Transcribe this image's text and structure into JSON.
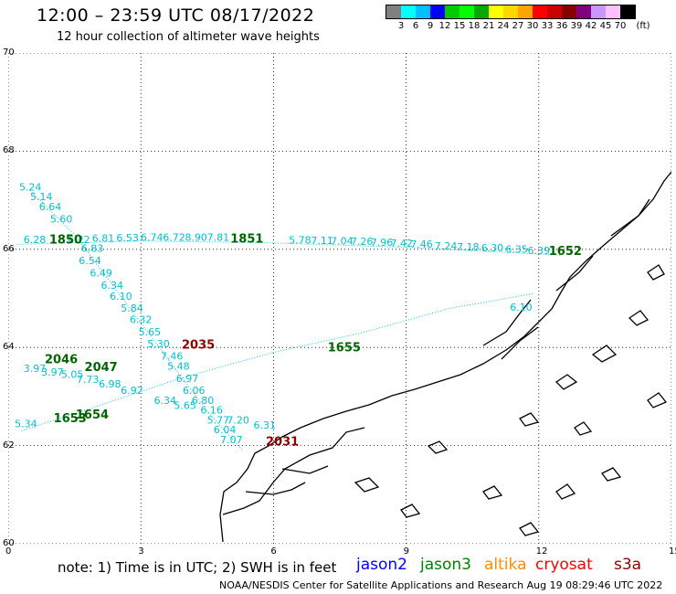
{
  "header": {
    "title": "12:00 – 23:59 UTC 08/17/2022",
    "subtitle": "12 hour collection of altimeter wave heights"
  },
  "color_scale": {
    "unit": "(ft)",
    "labels": [
      "3",
      "6",
      "9",
      "12",
      "15",
      "18",
      "21",
      "24",
      "27",
      "30",
      "33",
      "36",
      "39",
      "42",
      "45",
      "70"
    ],
    "colors": [
      "#808080",
      "#00ffff",
      "#00bfff",
      "#0000ff",
      "#00cc00",
      "#00ff00",
      "#00aa00",
      "#ffff00",
      "#ffd700",
      "#ffa500",
      "#ff0000",
      "#cc0000",
      "#880000",
      "#800080",
      "#c896ff",
      "#ffc0ff",
      "#000000"
    ]
  },
  "map": {
    "lat_ticks": [
      "70",
      "68",
      "66",
      "64",
      "62",
      "60"
    ],
    "lon_ticks": [
      "0",
      "3",
      "6",
      "9",
      "12",
      "15"
    ],
    "xlim": [
      0,
      15
    ],
    "ylim": [
      60,
      70
    ],
    "grid": true
  },
  "chart_data": {
    "type": "scatter",
    "xlim": [
      0,
      15
    ],
    "ylim": [
      60,
      70
    ],
    "grid": true,
    "series": [
      {
        "name": "jason2",
        "color": "#0000ff",
        "points": []
      },
      {
        "name": "jason3",
        "color": "#006400",
        "points": [
          {
            "x": 1.3,
            "y": 66.12,
            "label": "1850"
          },
          {
            "x": 5.4,
            "y": 66.14,
            "label": "1851"
          },
          {
            "x": 1.2,
            "y": 63.68,
            "label": "2046"
          },
          {
            "x": 2.1,
            "y": 63.52,
            "label": "2047"
          },
          {
            "x": 1.4,
            "y": 62.48,
            "label": "1653"
          },
          {
            "x": 1.9,
            "y": 62.55,
            "label": "1654"
          },
          {
            "x": 7.6,
            "y": 63.92,
            "label": "1655"
          },
          {
            "x": 12.6,
            "y": 65.88,
            "label": "1652"
          }
        ]
      },
      {
        "name": "altika",
        "color": "#ff8c00",
        "points": []
      },
      {
        "name": "cryosat",
        "color": "#ff0000",
        "points": []
      },
      {
        "name": "s3a",
        "color": "#8b0000",
        "points": [
          {
            "x": 4.3,
            "y": 63.98,
            "label": "2035"
          },
          {
            "x": 6.2,
            "y": 62.0,
            "label": "2031"
          }
        ]
      }
    ],
    "wave_heights": [
      {
        "x": 0.5,
        "y": 67.2,
        "label": "5.24"
      },
      {
        "x": 0.75,
        "y": 67.0,
        "label": "5.14"
      },
      {
        "x": 0.95,
        "y": 66.8,
        "label": "6.64"
      },
      {
        "x": 1.2,
        "y": 66.55,
        "label": "5.60"
      },
      {
        "x": 0.6,
        "y": 66.13,
        "label": "6.28"
      },
      {
        "x": 1.6,
        "y": 66.13,
        "label": "6.22"
      },
      {
        "x": 2.15,
        "y": 66.15,
        "label": "6.81"
      },
      {
        "x": 2.7,
        "y": 66.16,
        "label": "6.53"
      },
      {
        "x": 3.25,
        "y": 66.17,
        "label": "6.74"
      },
      {
        "x": 3.75,
        "y": 66.17,
        "label": "6.72"
      },
      {
        "x": 4.25,
        "y": 66.17,
        "label": "8.90"
      },
      {
        "x": 4.75,
        "y": 66.17,
        "label": "7.81"
      },
      {
        "x": 6.6,
        "y": 66.12,
        "label": "5.78"
      },
      {
        "x": 7.1,
        "y": 66.11,
        "label": "7.11"
      },
      {
        "x": 7.55,
        "y": 66.1,
        "label": "7.04"
      },
      {
        "x": 8.0,
        "y": 66.09,
        "label": "7.26"
      },
      {
        "x": 8.45,
        "y": 66.07,
        "label": "7.96"
      },
      {
        "x": 8.9,
        "y": 66.05,
        "label": "7.42"
      },
      {
        "x": 9.35,
        "y": 66.03,
        "label": "7.46"
      },
      {
        "x": 9.9,
        "y": 66.0,
        "label": "7.24"
      },
      {
        "x": 10.4,
        "y": 65.98,
        "label": "7.18"
      },
      {
        "x": 10.95,
        "y": 65.96,
        "label": "6.30"
      },
      {
        "x": 11.5,
        "y": 65.93,
        "label": "6.35"
      },
      {
        "x": 12.0,
        "y": 65.9,
        "label": "6.39"
      },
      {
        "x": 1.9,
        "y": 65.95,
        "label": "6.83"
      },
      {
        "x": 1.85,
        "y": 65.7,
        "label": "6.54"
      },
      {
        "x": 2.1,
        "y": 65.45,
        "label": "6.49"
      },
      {
        "x": 2.35,
        "y": 65.2,
        "label": "6.34"
      },
      {
        "x": 2.55,
        "y": 64.97,
        "label": "6.10"
      },
      {
        "x": 2.8,
        "y": 64.73,
        "label": "5.84"
      },
      {
        "x": 3.0,
        "y": 64.5,
        "label": "6.32"
      },
      {
        "x": 3.2,
        "y": 64.25,
        "label": "5.65"
      },
      {
        "x": 3.4,
        "y": 64.0,
        "label": "5.30"
      },
      {
        "x": 3.7,
        "y": 63.75,
        "label": "7.46"
      },
      {
        "x": 3.85,
        "y": 63.55,
        "label": "5.48"
      },
      {
        "x": 4.05,
        "y": 63.3,
        "label": "6.97"
      },
      {
        "x": 4.2,
        "y": 63.05,
        "label": "6.06"
      },
      {
        "x": 4.4,
        "y": 62.85,
        "label": "6.80"
      },
      {
        "x": 4.6,
        "y": 62.65,
        "label": "6.16"
      },
      {
        "x": 4.75,
        "y": 62.45,
        "label": "5.77"
      },
      {
        "x": 5.2,
        "y": 62.45,
        "label": "7.20"
      },
      {
        "x": 5.8,
        "y": 62.35,
        "label": "6.31"
      },
      {
        "x": 4.9,
        "y": 62.25,
        "label": "6.04"
      },
      {
        "x": 5.05,
        "y": 62.05,
        "label": "7.07"
      },
      {
        "x": 0.6,
        "y": 63.5,
        "label": "3.97"
      },
      {
        "x": 1.0,
        "y": 63.43,
        "label": "3.97"
      },
      {
        "x": 1.45,
        "y": 63.38,
        "label": "5.05"
      },
      {
        "x": 1.8,
        "y": 63.28,
        "label": "7.73"
      },
      {
        "x": 2.3,
        "y": 63.18,
        "label": "6.98"
      },
      {
        "x": 2.8,
        "y": 63.05,
        "label": "6.92"
      },
      {
        "x": 3.55,
        "y": 62.85,
        "label": "6.34"
      },
      {
        "x": 4.0,
        "y": 62.75,
        "label": "5.65"
      },
      {
        "x": 0.4,
        "y": 62.37,
        "label": "5.34"
      },
      {
        "x": 11.6,
        "y": 64.75,
        "label": "6.10"
      }
    ]
  },
  "legend": {
    "note": "note: 1) Time is in UTC; 2) SWH is in feet",
    "items": [
      {
        "label": "jason2",
        "color": "#0000ff"
      },
      {
        "label": "jason3",
        "color": "#008000"
      },
      {
        "label": "altika",
        "color": "#ff8c00"
      },
      {
        "label": "cryosat",
        "color": "#ff0000"
      },
      {
        "label": "s3a",
        "color": "#8b0000"
      }
    ]
  },
  "footer": {
    "credit": "NOAA/NESDIS Center for Satellite Applications and Research    Aug 19 08:29:46 UTC 2022"
  }
}
